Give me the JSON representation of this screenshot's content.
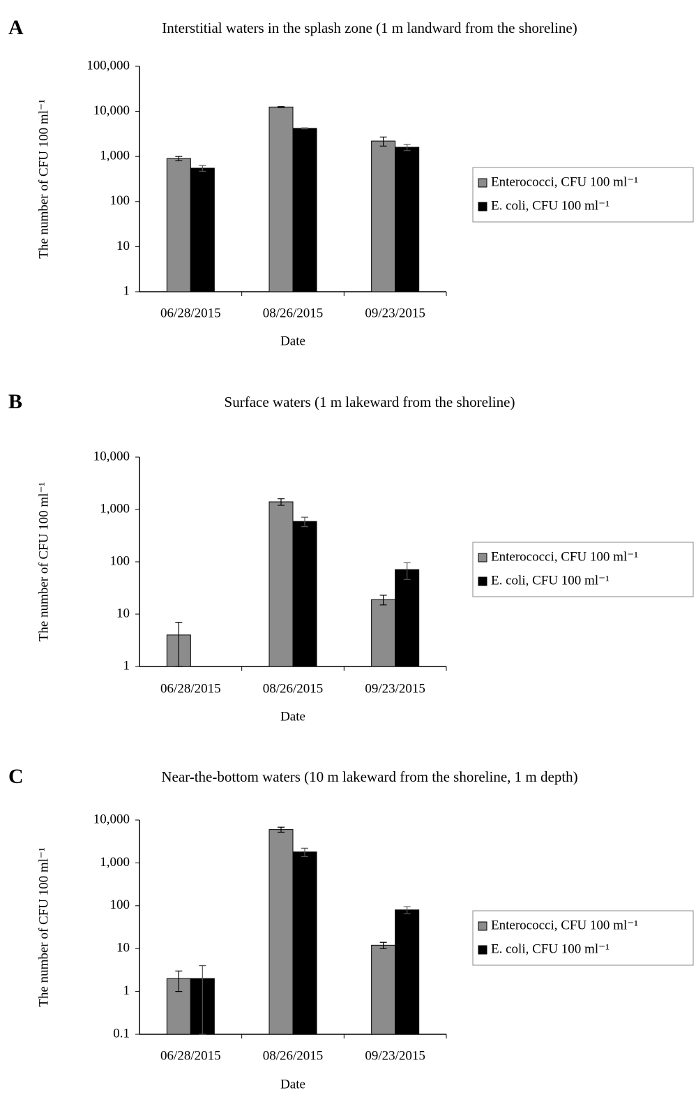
{
  "chart_data": [
    {
      "type": "bar",
      "panel_label": "A",
      "title": "Interstitial waters in the splash zone (1 m landward from the shoreline)",
      "x_label": "Date",
      "y_label": "The number of CFU 100 ml⁻¹",
      "log_scale": true,
      "categories": [
        "06/28/2015",
        "08/26/2015",
        "09/23/2015"
      ],
      "series": [
        {
          "name": "Enterococci, CFU 100 ml⁻¹",
          "color": "#8c8c8c",
          "values": [
            900,
            12500,
            2200
          ],
          "errors": [
            100,
            300,
            500
          ]
        },
        {
          "name": "E. coli, CFU 100 ml⁻¹",
          "color": "#000000",
          "values": [
            550,
            4200,
            1600
          ],
          "errors": [
            80,
            100,
            250
          ]
        }
      ],
      "ylim": [
        1,
        100000
      ],
      "yticks": [
        1,
        10,
        100,
        {
          "value": 1000,
          "label": "1,000"
        },
        {
          "value": 10000,
          "label": "10,000"
        },
        {
          "value": 100000,
          "label": "100,000"
        }
      ],
      "legend": "right"
    },
    {
      "type": "bar",
      "panel_label": "B",
      "title": "Surface waters (1 m lakeward from the shoreline)",
      "x_label": "Date",
      "y_label": "The number of CFU 100 ml⁻¹",
      "log_scale": true,
      "categories": [
        "06/28/2015",
        "08/26/2015",
        "09/23/2015"
      ],
      "series": [
        {
          "name": "Enterococci, CFU 100 ml⁻¹",
          "color": "#8c8c8c",
          "values": [
            4,
            1400,
            19
          ],
          "errors": [
            3,
            200,
            4
          ]
        },
        {
          "name": "E. coli, CFU 100 ml⁻¹",
          "color": "#000000",
          "values": [
            null,
            590,
            71
          ],
          "errors": [
            null,
            120,
            25
          ]
        }
      ],
      "ylim": [
        1,
        10000
      ],
      "yticks": [
        1,
        10,
        100,
        {
          "value": 1000,
          "label": "1,000"
        },
        {
          "value": 10000,
          "label": "10,000"
        }
      ],
      "legend": "right"
    },
    {
      "type": "bar",
      "panel_label": "C",
      "title": "Near-the-bottom waters (10 m lakeward from the shoreline, 1 m depth)",
      "x_label": "Date",
      "y_label": "The number of CFU 100 ml⁻¹",
      "log_scale": true,
      "categories": [
        "06/28/2015",
        "08/26/2015",
        "09/23/2015"
      ],
      "series": [
        {
          "name": "Enterococci, CFU 100 ml⁻¹",
          "color": "#8c8c8c",
          "values": [
            2,
            6000,
            12
          ],
          "errors": [
            1,
            800,
            2
          ]
        },
        {
          "name": "E. coli, CFU 100 ml⁻¹",
          "color": "#000000",
          "values": [
            2,
            1800,
            80
          ],
          "errors": [
            2,
            400,
            15
          ]
        }
      ],
      "ylim": [
        0.1,
        10000
      ],
      "yticks": [
        0.1,
        1,
        10,
        100,
        {
          "value": 1000,
          "label": "1,000"
        },
        {
          "value": 10000,
          "label": "10,000"
        }
      ],
      "legend": "right"
    }
  ]
}
